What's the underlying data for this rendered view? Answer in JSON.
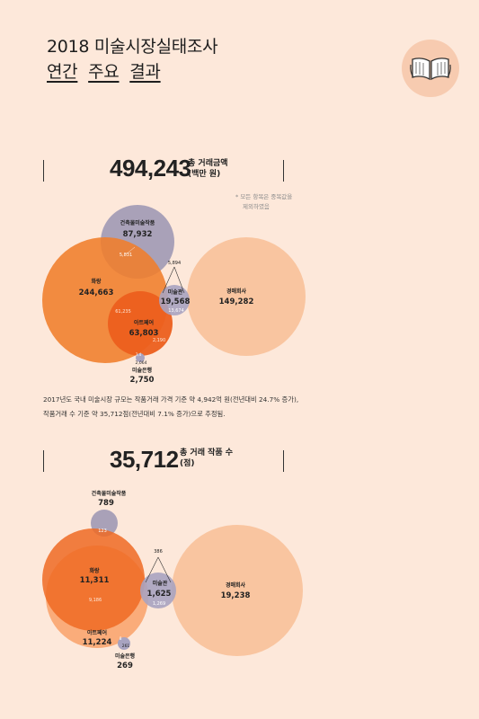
{
  "title": {
    "line1": "2018 미술시장실태조사",
    "line2_words": [
      "연간",
      "주요",
      "결과"
    ]
  },
  "section1": {
    "value": "494,243",
    "label_line1": "총 거래금액",
    "label_line2": "(백만 원)",
    "note_line1": "* 모든 항목은 중복값을",
    "note_line2": "제외하였음",
    "circles": {
      "construction": {
        "name": "건축물미술작품",
        "value": "87,932"
      },
      "gallery": {
        "name": "화랑",
        "value": "244,663"
      },
      "artfair": {
        "name": "아트페어",
        "value": "63,803"
      },
      "museum": {
        "name": "미술관",
        "value": "19,568"
      },
      "auction": {
        "name": "경매회사",
        "value": "149,282"
      },
      "bank": {
        "name": "미술은행",
        "value": "2,750"
      }
    },
    "overlaps": {
      "gallery_construction": "5,831",
      "museum_top": "5,894",
      "gallery_artfair": "61,235",
      "artfair_small": "2,190",
      "museum_inner": "13,674",
      "bank_inner": "2,064",
      "bank_small": "3,4"
    },
    "summary_line1": "2017년도 국내 미술시장 규모는 작품거래 가격 기준 약 4,942억 원(전년대비 24.7% 증가),",
    "summary_line2": "작품거래 수 기준 약 35,712점(전년대비 7.1% 증가)으로 추정됨."
  },
  "section2": {
    "value": "35,712",
    "label_line1": "총 거래 작품 수",
    "label_line2": "(점)",
    "circles": {
      "construction": {
        "name": "건축물미술작품",
        "value": "789"
      },
      "gallery": {
        "name": "화랑",
        "value": "11,311"
      },
      "artfair": {
        "name": "아트페어",
        "value": "11,224"
      },
      "museum": {
        "name": "미술관",
        "value": "1,625"
      },
      "auction": {
        "name": "경매회사",
        "value": "19,238"
      },
      "bank": {
        "name": "미술은행",
        "value": "269"
      }
    },
    "overlaps": {
      "construction_gallery": "123",
      "museum_top": "386",
      "gallery_artfair": "9,186",
      "museum_inner": "1,269",
      "bank_inner": "261",
      "bank_small": "8"
    }
  },
  "colors": {
    "background": "#fde8da",
    "gallery": "#f07d2a",
    "artfair": "#ec5f1e",
    "construction": "#a9a1b8",
    "auction": "#f9c5a0",
    "museum": "#a8a3c0"
  },
  "icons": [
    "book-icon"
  ]
}
